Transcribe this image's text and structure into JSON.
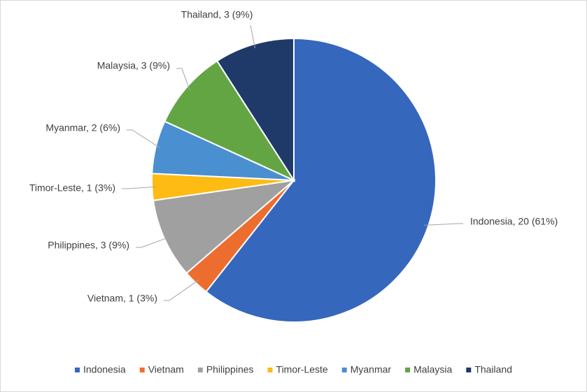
{
  "chart_data": {
    "type": "pie",
    "categories": [
      "Indonesia",
      "Vietnam",
      "Philippines",
      "Timor-Leste",
      "Myanmar",
      "Malaysia",
      "Thailand"
    ],
    "values": [
      20,
      1,
      3,
      1,
      2,
      3,
      3
    ],
    "value_labels": [
      "Indonesia, 20 (61%)",
      "Vietnam, 1 (3%)",
      "Philippines, 3 (9%)",
      "Timor-Leste, 1 (3%)",
      "Myanmar, 2 (6%)",
      "Malaysia, 3 (9%)",
      "Thailand, 3 (9%)"
    ],
    "colors": [
      "#3567bd",
      "#ed6d2f",
      "#a0a0a0",
      "#fdbb13",
      "#4a8fd0",
      "#64a543",
      "#1f3a69"
    ],
    "legend": "bottom"
  }
}
